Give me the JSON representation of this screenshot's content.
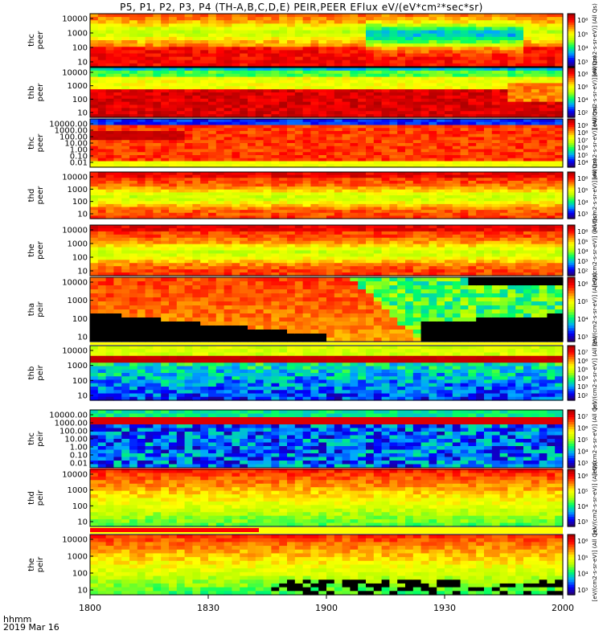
{
  "title": "P5, P1, P2, P3, P4 (TH-A,B,C,D,E) PEIR,PEER EFlux eV/(eV*cm²*sec*sr)",
  "footer": {
    "time_label": "hhmm",
    "date_label": "2019 Mar 16"
  },
  "chart_data": {
    "type": "heatmap",
    "x_tick_labels": [
      "1800",
      "1830",
      "1900",
      "1930",
      "2000"
    ],
    "panels": [
      {
        "label": [
          "thc",
          "peer"
        ],
        "y_ticks": [
          "10000",
          "1000",
          "100",
          "10"
        ],
        "colorbar_ticks": [
          "10⁶",
          "10⁵",
          "10⁴",
          "10³"
        ],
        "colorbar_label": "[eV/(cm2-s-sr-eV)] (All Qs)",
        "pattern": "electron-mixed"
      },
      {
        "label": [
          "thb",
          "peer"
        ],
        "y_ticks": [
          "10000",
          "1000",
          "100",
          "10"
        ],
        "colorbar_ticks": [
          "10⁸",
          "10⁶",
          "10⁴",
          "10²"
        ],
        "colorbar_label": "[eV/(cm2-s-sr-eV)] (All Qs)",
        "pattern": "electron-bands"
      },
      {
        "label": [
          "thc",
          "peer"
        ],
        "y_ticks": [
          "10000.00",
          "1000.00",
          "100.00",
          "10.00",
          "1.00",
          "0.10",
          "0.01"
        ],
        "colorbar_ticks": [
          "10⁹",
          "10⁸",
          "10⁷",
          "10⁶",
          "10⁵",
          "10⁴"
        ],
        "colorbar_label": "[eV/(cm2-s-sr-eV)] (All Qs)",
        "pattern": "electron-wide"
      },
      {
        "label": [
          "thd",
          "peer"
        ],
        "y_ticks": [
          "10000",
          "1000",
          "100",
          "10"
        ],
        "colorbar_ticks": [
          "10⁶",
          "10⁵",
          "10⁴",
          "10³"
        ],
        "colorbar_label": "[eV/(cm2-s-sr-eV)] (All Qs)",
        "pattern": "electron-hot"
      },
      {
        "label": [
          "the",
          "peer"
        ],
        "y_ticks": [
          "10000",
          "1000",
          "100",
          "10"
        ],
        "colorbar_ticks": [
          "10⁶",
          "10⁵",
          "10⁴",
          "10³",
          "10²"
        ],
        "colorbar_label": "[eV/(cm2-s-sr-eV)] (All Qs)",
        "pattern": "electron-hot"
      },
      {
        "label": [
          "tha",
          "peir"
        ],
        "y_ticks": [
          "10000",
          "1000",
          "100",
          "10"
        ],
        "colorbar_ticks": [
          "10⁶",
          "10⁵",
          "10⁴",
          "10³"
        ],
        "colorbar_label": "[eV/(cm2-s-sr-eV)] (All Qs)",
        "pattern": "ion-transition"
      },
      {
        "label": [
          "thb",
          "peir"
        ],
        "y_ticks": [
          "10000",
          "1000",
          "100",
          "10"
        ],
        "colorbar_ticks": [
          "10⁷",
          "10⁶",
          "10⁵",
          "10⁴",
          "10³",
          "10²"
        ],
        "colorbar_label": "[eV/(cm2-s-sr-eV)] (All Qs)",
        "pattern": "ion-band"
      },
      {
        "label": [
          "thc",
          "peir"
        ],
        "y_ticks": [
          "10000.00",
          "1000.00",
          "100.00",
          "10.00",
          "1.00",
          "0.10",
          "0.01"
        ],
        "colorbar_ticks": [
          "10⁷",
          "10⁶",
          "10⁵",
          "10⁴",
          "10³"
        ],
        "colorbar_label": "[eV/(cm2-s-sr-eV)] (All Qs)",
        "pattern": "ion-wide"
      },
      {
        "label": [
          "thd",
          "peir"
        ],
        "y_ticks": [
          "10000",
          "1000",
          "100",
          "10"
        ],
        "colorbar_ticks": [
          "10⁶",
          "10⁵",
          "10⁴",
          "10³"
        ],
        "colorbar_label": "[eV/(cm2-s-sr-eV)] (All Qs)",
        "pattern": "ion-hot"
      },
      {
        "label": [
          "the",
          "peir"
        ],
        "y_ticks": [
          "10000",
          "1000",
          "100",
          "10"
        ],
        "colorbar_ticks": [
          "10⁶",
          "10⁵",
          "10⁴",
          "10³"
        ],
        "colorbar_label": "[eV/(cm2-s-sr-eV)] (All Qs)",
        "pattern": "ion-tail"
      }
    ],
    "colormap": [
      "#2b0066",
      "#0000ff",
      "#00a8ff",
      "#00ff66",
      "#b8ff00",
      "#ffff00",
      "#ff8000",
      "#ff0000",
      "#a00000"
    ]
  }
}
